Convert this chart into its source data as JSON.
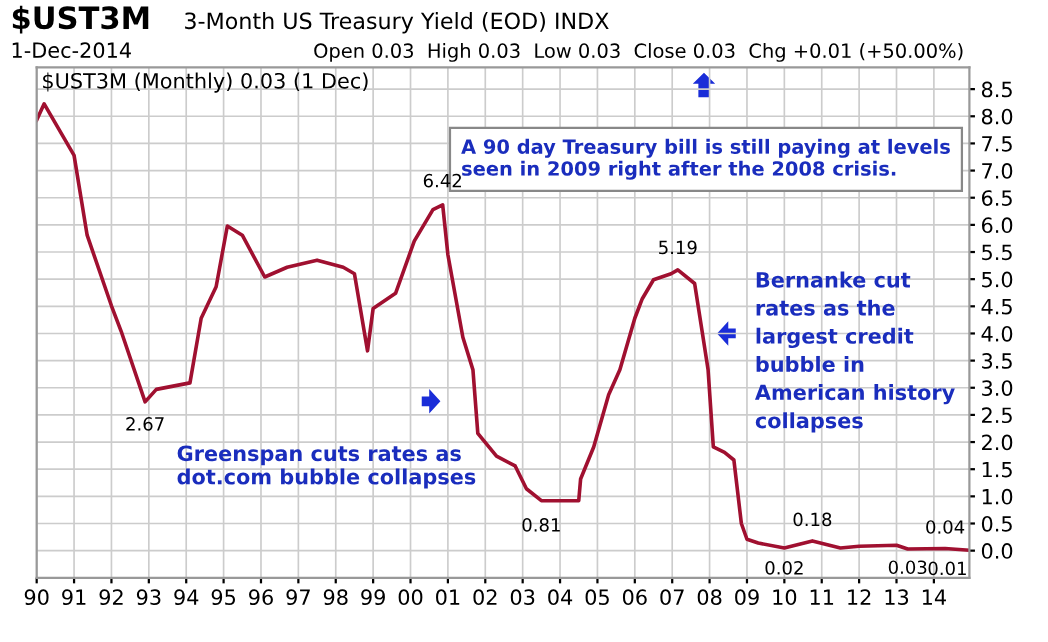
{
  "chart_data": {
    "type": "line",
    "title": "$UST3M",
    "subtitle": "3-Month US Treasury Yield (EOD) INDX",
    "x": [
      1990.0,
      1990.2,
      1991.0,
      1991.35,
      1992.0,
      1992.26,
      1992.9,
      1993.2,
      1994.1,
      1994.4,
      1994.8,
      1995.1,
      1995.5,
      1996.1,
      1996.7,
      1997.5,
      1998.2,
      1998.5,
      1998.85,
      1999.0,
      1999.6,
      2000.1,
      2000.6,
      2000.86,
      2001.0,
      2001.4,
      2001.67,
      2001.8,
      2002.3,
      2002.8,
      2003.1,
      2003.5,
      2004.5,
      2004.55,
      2004.9,
      2005.3,
      2005.6,
      2006.0,
      2006.2,
      2006.5,
      2006.97,
      2007.15,
      2007.6,
      2007.8,
      2007.96,
      2008.1,
      2008.4,
      2008.65,
      2008.85,
      2009.0,
      2009.3,
      2010.0,
      2010.75,
      2011.5,
      2012.0,
      2013.0,
      2013.3,
      2014.3,
      2014.9
    ],
    "series": [
      {
        "color": "#a01030",
        "values": [
          7.93,
          8.23,
          7.28,
          5.81,
          4.51,
          4.04,
          2.74,
          2.97,
          3.09,
          4.28,
          4.86,
          5.98,
          5.81,
          5.04,
          5.22,
          5.35,
          5.22,
          5.1,
          3.68,
          4.46,
          4.74,
          5.7,
          6.28,
          6.37,
          5.45,
          3.93,
          3.33,
          2.16,
          1.74,
          1.56,
          1.14,
          0.92,
          0.92,
          1.32,
          1.91,
          2.87,
          3.33,
          4.28,
          4.64,
          4.99,
          5.1,
          5.17,
          4.92,
          4.04,
          3.33,
          1.91,
          1.81,
          1.67,
          0.5,
          0.21,
          0.14,
          0.05,
          0.18,
          0.05,
          0.08,
          0.1,
          0.03,
          0.04,
          0.01
        ]
      }
    ],
    "xlim": [
      1990,
      2014.95
    ],
    "ylim": [
      -0.5,
      8.9
    ],
    "xticks": [
      {
        "value": 1990,
        "label": "90"
      },
      {
        "value": 1991,
        "label": "91"
      },
      {
        "value": 1992,
        "label": "92"
      },
      {
        "value": 1993,
        "label": "93"
      },
      {
        "value": 1994,
        "label": "94"
      },
      {
        "value": 1995,
        "label": "95"
      },
      {
        "value": 1996,
        "label": "96"
      },
      {
        "value": 1997,
        "label": "97"
      },
      {
        "value": 1998,
        "label": "98"
      },
      {
        "value": 1999,
        "label": "99"
      },
      {
        "value": 2000,
        "label": "00"
      },
      {
        "value": 2001,
        "label": "01"
      },
      {
        "value": 2002,
        "label": "02"
      },
      {
        "value": 2003,
        "label": "03"
      },
      {
        "value": 2004,
        "label": "04"
      },
      {
        "value": 2005,
        "label": "05"
      },
      {
        "value": 2006,
        "label": "06"
      },
      {
        "value": 2007,
        "label": "07"
      },
      {
        "value": 2008,
        "label": "08"
      },
      {
        "value": 2009,
        "label": "09"
      },
      {
        "value": 2010,
        "label": "10"
      },
      {
        "value": 2011,
        "label": "11"
      },
      {
        "value": 2012,
        "label": "12"
      },
      {
        "value": 2013,
        "label": "13"
      },
      {
        "value": 2014,
        "label": "14"
      }
    ],
    "yticks": [
      {
        "value": 0,
        "label": "0.0"
      },
      0.5,
      {
        "value": 1,
        "label": "1.0"
      },
      1.5,
      {
        "value": 2,
        "label": "2.0"
      },
      2.5,
      {
        "value": 3,
        "label": "3.0"
      },
      3.5,
      {
        "value": 4,
        "label": "4.0"
      },
      4.5,
      {
        "value": 5,
        "label": "5.0"
      },
      5.5,
      {
        "value": 6,
        "label": "6.0"
      },
      6.5,
      {
        "value": 7,
        "label": "7.0"
      },
      7.5,
      {
        "value": 8,
        "label": "8.0"
      },
      8.5
    ],
    "grid": true,
    "line_style": "solid",
    "annotations": [
      "1-Dec-2014",
      "Open 0.03  High 0.03  Low 0.03  Close 0.03  Chg +0.01 (+50.00%)",
      "$UST3M (Monthly) 0.03 (1 Dec)",
      "A 90 day Treasury bill is still paying at levels\nseen in 2009 right after the 2008 crisis.",
      "Greenspan cuts rates as\ndot.com bubble collapses",
      "Bernanke cut\nrates as the\nlargest credit\nbubble in\nAmerican history\ncollapses",
      {
        "text": "2.67",
        "x": 1992.9,
        "y": 2.67
      },
      {
        "text": "6.42",
        "x": 2000.86,
        "y": 6.42
      },
      {
        "text": "0.81",
        "x": 2003.5,
        "y": 0.81
      },
      {
        "text": "5.19",
        "x": 2007.15,
        "y": 5.19
      },
      {
        "text": "0.02",
        "x": 2010.0,
        "y": 0.02
      },
      {
        "text": "0.18",
        "x": 2010.75,
        "y": 0.18
      },
      {
        "text": "0.03",
        "x": 2013.3,
        "y": 0.03
      },
      {
        "text": "0.04",
        "x": 2014.3,
        "y": 0.04
      },
      {
        "text": "0.01",
        "x": 2014.9,
        "y": 0.01
      }
    ]
  }
}
